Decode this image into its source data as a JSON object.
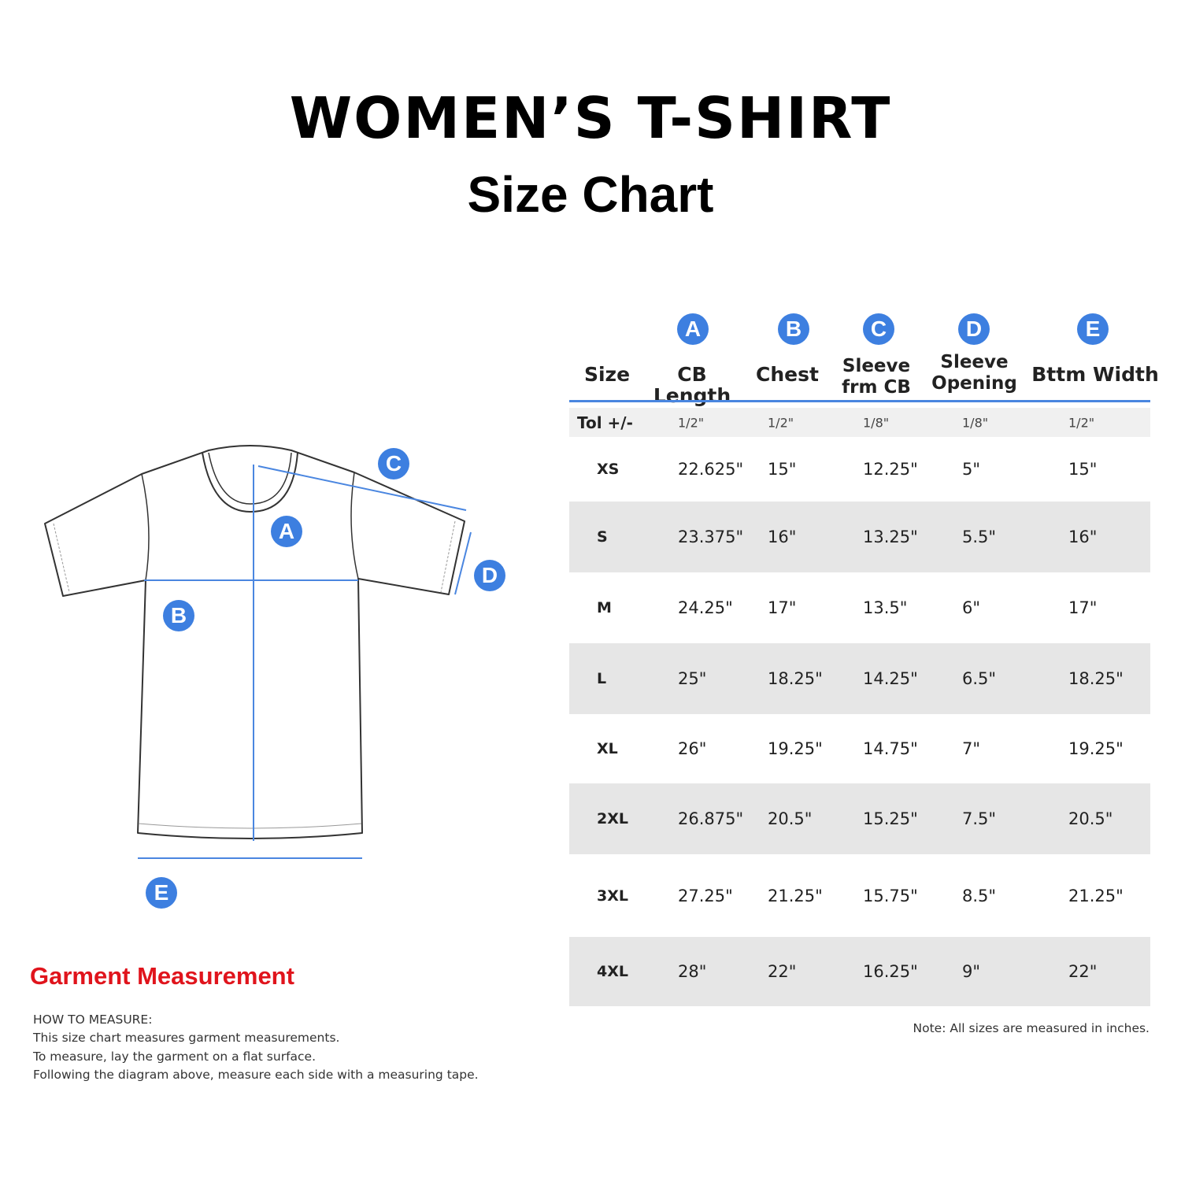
{
  "title": "WOMEN’S T-SHIRT",
  "subtitle": "Size Chart",
  "accent_color": "#3d7fe0",
  "diagram": {
    "markers": [
      "A",
      "B",
      "C",
      "D",
      "E"
    ],
    "caption": "Garment Measurement",
    "how_to_measure": [
      "HOW TO MEASURE:",
      "This size chart measures garment measurements.",
      "To measure, lay the garment on a flat surface.",
      "Following the diagram above, measure each side with a measuring tape."
    ]
  },
  "table": {
    "columns": [
      {
        "key": "",
        "label": "Size"
      },
      {
        "key": "A",
        "label": "CB Length"
      },
      {
        "key": "B",
        "label": "Chest"
      },
      {
        "key": "C",
        "label": "Sleeve frm CB"
      },
      {
        "key": "D",
        "label": "Sleeve Opening"
      },
      {
        "key": "E",
        "label": "Bttm Width"
      }
    ],
    "tolerance": [
      "Tol +/-",
      "1/2\"",
      "1/2\"",
      "1/8\"",
      "1/8\"",
      "1/2\""
    ],
    "rows": [
      [
        "XS",
        "22.625\"",
        "15\"",
        "12.25\"",
        "5\"",
        "15\""
      ],
      [
        "S",
        "23.375\"",
        "16\"",
        "13.25\"",
        "5.5\"",
        "16\""
      ],
      [
        "M",
        "24.25\"",
        "17\"",
        "13.5\"",
        "6\"",
        "17\""
      ],
      [
        "L",
        "25\"",
        "18.25\"",
        "14.25\"",
        "6.5\"",
        "18.25\""
      ],
      [
        "XL",
        "26\"",
        "19.25\"",
        "14.75\"",
        "7\"",
        "19.25\""
      ],
      [
        "2XL",
        "26.875\"",
        "20.5\"",
        "15.25\"",
        "7.5\"",
        "20.5\""
      ],
      [
        "3XL",
        "27.25\"",
        "21.25\"",
        "15.75\"",
        "8.5\"",
        "21.25\""
      ],
      [
        "4XL",
        "28\"",
        "22\"",
        "16.25\"",
        "9\"",
        "22\""
      ]
    ],
    "note": "Note: All sizes are measured in inches."
  }
}
